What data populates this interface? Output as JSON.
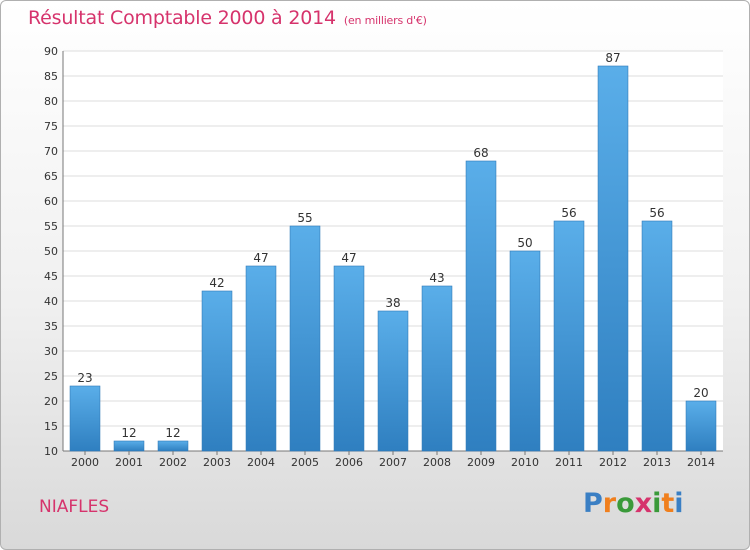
{
  "chart_data": {
    "type": "bar",
    "title": "Résultat Comptable 2000 à 2014",
    "subtitle": "(en milliers d'€)",
    "categories": [
      "2000",
      "2001",
      "2002",
      "2003",
      "2004",
      "2005",
      "2006",
      "2007",
      "2008",
      "2009",
      "2010",
      "2011",
      "2012",
      "2013",
      "2014"
    ],
    "values": [
      23,
      12,
      12,
      42,
      47,
      55,
      47,
      38,
      43,
      68,
      50,
      56,
      87,
      56,
      20
    ],
    "ylim": [
      10,
      90
    ],
    "yticks": [
      10,
      15,
      20,
      25,
      30,
      35,
      40,
      45,
      50,
      55,
      60,
      65,
      70,
      75,
      80,
      85,
      90
    ],
    "xlabel": "",
    "ylabel": "",
    "grid": true,
    "bar_color": "#4a9fe0"
  },
  "location": "NIAFLES",
  "brand": {
    "letters": [
      "P",
      "r",
      "o",
      "x",
      "i",
      "t",
      "i"
    ],
    "colors": [
      "#3a7fc4",
      "#f07f1d",
      "#3a9a3a",
      "#d6336c",
      "#3a9a3a",
      "#f07f1d",
      "#3a7fc4"
    ]
  }
}
